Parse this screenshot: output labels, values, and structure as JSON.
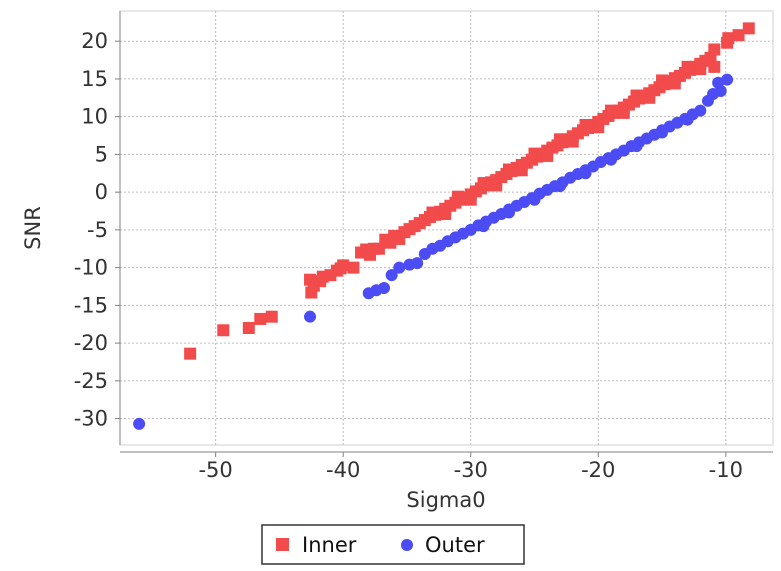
{
  "chart_data": {
    "type": "scatter",
    "xlabel": "Sigma0",
    "ylabel": "SNR",
    "xlim": [
      -57.5,
      -6.3
    ],
    "ylim": [
      -33.5,
      24.0
    ],
    "x_ticks": [
      -50,
      -40,
      -30,
      -20,
      -10
    ],
    "y_ticks": [
      -30,
      -25,
      -20,
      -15,
      -10,
      -5,
      0,
      5,
      10,
      15,
      20
    ],
    "grid": true,
    "legend_position": "bottom",
    "series": [
      {
        "name": "Inner",
        "marker": "square",
        "color": "#f24b4b",
        "points": [
          [
            -52.0,
            -21.4
          ],
          [
            -49.4,
            -18.3
          ],
          [
            -47.4,
            -18.0
          ],
          [
            -46.5,
            -16.8
          ],
          [
            -45.6,
            -16.5
          ],
          [
            -42.6,
            -11.6
          ],
          [
            -42.5,
            -13.3
          ],
          [
            -42.3,
            -12.4
          ],
          [
            -41.8,
            -11.8
          ],
          [
            -41.6,
            -11.2
          ],
          [
            -41.0,
            -11.0
          ],
          [
            -40.5,
            -10.4
          ],
          [
            -40.2,
            -10.1
          ],
          [
            -40.0,
            -9.7
          ],
          [
            -39.2,
            -10.0
          ],
          [
            -38.6,
            -8.0
          ],
          [
            -38.2,
            -7.6
          ],
          [
            -37.9,
            -8.3
          ],
          [
            -37.6,
            -7.5
          ],
          [
            -37.2,
            -7.5
          ],
          [
            -36.7,
            -6.3
          ],
          [
            -36.3,
            -6.7
          ],
          [
            -36.0,
            -5.8
          ],
          [
            -35.6,
            -6.2
          ],
          [
            -35.2,
            -5.3
          ],
          [
            -34.8,
            -4.9
          ],
          [
            -34.4,
            -4.5
          ],
          [
            -34.0,
            -4.1
          ],
          [
            -33.6,
            -3.7
          ],
          [
            -33.2,
            -3.3
          ],
          [
            -32.8,
            -3.0
          ],
          [
            -32.4,
            -2.6
          ],
          [
            -32.0,
            -2.2
          ],
          [
            -31.6,
            -1.8
          ],
          [
            -31.2,
            -1.4
          ],
          [
            -30.8,
            -1.0
          ],
          [
            -30.4,
            -0.7
          ],
          [
            -30.0,
            -0.3
          ],
          [
            -29.6,
            0.1
          ],
          [
            -29.2,
            0.5
          ],
          [
            -28.8,
            0.9
          ],
          [
            -28.4,
            1.3
          ],
          [
            -28.0,
            1.6
          ],
          [
            -27.6,
            2.0
          ],
          [
            -27.2,
            2.4
          ],
          [
            -26.8,
            2.8
          ],
          [
            -26.4,
            3.2
          ],
          [
            -26.0,
            3.6
          ],
          [
            -25.6,
            3.9
          ],
          [
            -25.2,
            4.3
          ],
          [
            -24.8,
            4.7
          ],
          [
            -24.4,
            5.1
          ],
          [
            -24.0,
            5.5
          ],
          [
            -23.6,
            5.9
          ],
          [
            -23.2,
            6.2
          ],
          [
            -22.8,
            6.6
          ],
          [
            -22.4,
            7.0
          ],
          [
            -22.0,
            7.4
          ],
          [
            -21.6,
            7.8
          ],
          [
            -21.2,
            8.2
          ],
          [
            -20.8,
            8.5
          ],
          [
            -20.4,
            8.9
          ],
          [
            -20.0,
            9.3
          ],
          [
            -19.6,
            9.7
          ],
          [
            -19.2,
            10.1
          ],
          [
            -18.8,
            10.5
          ],
          [
            -18.4,
            10.8
          ],
          [
            -18.0,
            11.2
          ],
          [
            -17.6,
            11.6
          ],
          [
            -17.2,
            12.0
          ],
          [
            -16.8,
            12.4
          ],
          [
            -16.4,
            12.8
          ],
          [
            -16.0,
            13.1
          ],
          [
            -15.6,
            13.5
          ],
          [
            -15.2,
            13.9
          ],
          [
            -14.8,
            14.3
          ],
          [
            -14.4,
            14.7
          ],
          [
            -14.0,
            15.1
          ],
          [
            -13.6,
            15.4
          ],
          [
            -13.2,
            15.8
          ],
          [
            -12.8,
            16.2
          ],
          [
            -12.4,
            16.6
          ],
          [
            -12.0,
            17.0
          ],
          [
            -11.6,
            17.4
          ],
          [
            -11.2,
            17.8
          ],
          [
            -10.9,
            18.9
          ],
          [
            -10.9,
            16.6
          ],
          [
            -9.9,
            19.8
          ],
          [
            -9.8,
            20.4
          ],
          [
            -9.0,
            20.8
          ],
          [
            -8.2,
            21.7
          ],
          [
            -33.0,
            -2.7
          ],
          [
            -31.0,
            -0.6
          ],
          [
            -29.0,
            1.2
          ],
          [
            -27.0,
            3.0
          ],
          [
            -25.0,
            5.1
          ],
          [
            -23.0,
            7.0
          ],
          [
            -21.0,
            8.9
          ],
          [
            -19.0,
            10.8
          ],
          [
            -17.0,
            12.8
          ],
          [
            -15.0,
            14.8
          ],
          [
            -13.0,
            16.6
          ],
          [
            -32.0,
            -2.9
          ],
          [
            -30.0,
            -1.0
          ],
          [
            -28.0,
            0.9
          ],
          [
            -26.0,
            2.9
          ],
          [
            -24.0,
            4.8
          ],
          [
            -22.0,
            6.7
          ],
          [
            -20.0,
            8.6
          ],
          [
            -18.0,
            10.5
          ],
          [
            -16.0,
            12.5
          ],
          [
            -14.0,
            14.4
          ],
          [
            -12.0,
            16.3
          ]
        ]
      },
      {
        "name": "Outer",
        "marker": "circle",
        "color": "#4c4cf5",
        "points": [
          [
            -56.0,
            -30.7
          ],
          [
            -42.6,
            -16.5
          ],
          [
            -38.0,
            -13.4
          ],
          [
            -37.4,
            -13.0
          ],
          [
            -36.8,
            -12.7
          ],
          [
            -36.2,
            -11.0
          ],
          [
            -35.6,
            -10.0
          ],
          [
            -34.8,
            -9.6
          ],
          [
            -34.2,
            -9.4
          ],
          [
            -33.6,
            -8.2
          ],
          [
            -33.0,
            -7.5
          ],
          [
            -32.4,
            -7.1
          ],
          [
            -31.8,
            -6.5
          ],
          [
            -31.2,
            -6.0
          ],
          [
            -30.6,
            -5.5
          ],
          [
            -30.0,
            -5.0
          ],
          [
            -29.4,
            -4.4
          ],
          [
            -28.8,
            -3.9
          ],
          [
            -28.2,
            -3.4
          ],
          [
            -27.6,
            -2.9
          ],
          [
            -27.0,
            -2.3
          ],
          [
            -26.4,
            -1.8
          ],
          [
            -25.8,
            -1.3
          ],
          [
            -25.2,
            -0.8
          ],
          [
            -24.6,
            -0.2
          ],
          [
            -24.0,
            0.3
          ],
          [
            -23.4,
            0.8
          ],
          [
            -22.8,
            1.3
          ],
          [
            -22.2,
            1.9
          ],
          [
            -21.6,
            2.4
          ],
          [
            -21.0,
            2.9
          ],
          [
            -20.4,
            3.4
          ],
          [
            -19.8,
            4.0
          ],
          [
            -19.2,
            4.5
          ],
          [
            -18.6,
            5.0
          ],
          [
            -18.0,
            5.5
          ],
          [
            -17.4,
            6.1
          ],
          [
            -16.8,
            6.6
          ],
          [
            -16.2,
            7.1
          ],
          [
            -15.6,
            7.6
          ],
          [
            -15.0,
            8.2
          ],
          [
            -14.4,
            8.7
          ],
          [
            -13.8,
            9.2
          ],
          [
            -13.2,
            9.7
          ],
          [
            -12.6,
            10.3
          ],
          [
            -12.0,
            10.8
          ],
          [
            -11.4,
            12.1
          ],
          [
            -11.0,
            13.0
          ],
          [
            -10.6,
            14.5
          ],
          [
            -10.4,
            13.4
          ],
          [
            -9.9,
            14.9
          ],
          [
            -29.0,
            -4.5
          ],
          [
            -27.0,
            -2.7
          ],
          [
            -25.0,
            -1.0
          ],
          [
            -23.0,
            0.8
          ],
          [
            -21.0,
            2.5
          ],
          [
            -19.0,
            4.3
          ],
          [
            -17.0,
            6.1
          ],
          [
            -15.0,
            7.9
          ],
          [
            -13.0,
            9.6
          ]
        ]
      }
    ]
  }
}
